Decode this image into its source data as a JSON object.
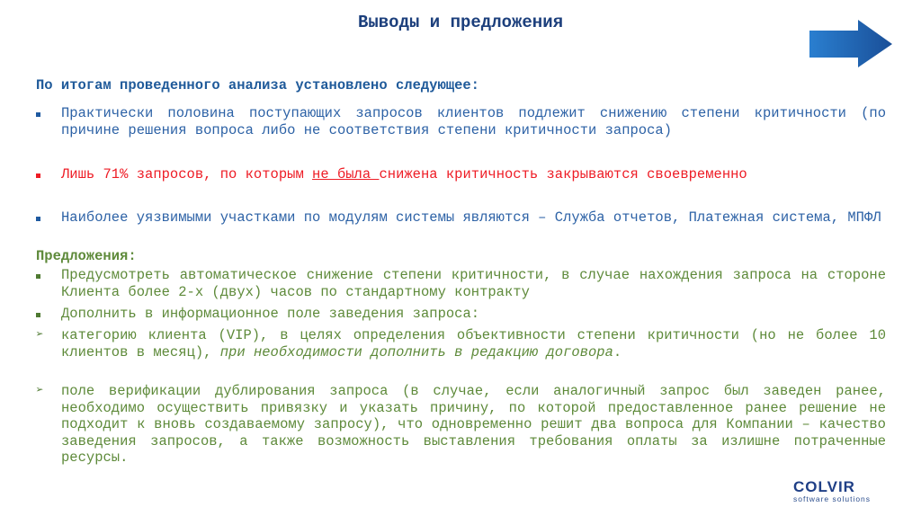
{
  "title": "Выводы и предложения",
  "next_icon": "arrow-right-icon",
  "lead": "По итогам проведенного анализа установлено следующее:",
  "findings": [
    {
      "text": "Практически половина поступающих запросов клиентов подлежит снижению степени критичности (по причине решения вопроса либо не соответствия степени критичности запроса)"
    },
    {
      "pre": "Лишь 71%  запросов, по которым ",
      "underlined": "не была ",
      "post": "снижена критичность закрываются своевременно"
    },
    {
      "text": "Наиболее уязвимыми участками по модулям системы являются – Служба отчетов, Платежная система, МПФЛ"
    }
  ],
  "proposals_heading": "Предложения:",
  "proposals": [
    {
      "text": "Предусмотреть автоматическое снижение степени критичности, в случае нахождения запроса на стороне Клиента более 2-х (двух) часов по стандартному контракту"
    },
    {
      "text": "Дополнить в информационное поле заведения запроса:"
    }
  ],
  "sub_proposals": [
    {
      "text": "категорию клиента (VIP), в целях определения объективности степени критичности (но не более 10 клиентов в месяц), ",
      "italic": "при необходимости дополнить в редакцию договора",
      "post": "."
    },
    {
      "text": "поле верификации дублирования запроса (в случае, если аналогичный запрос был заведен ранее, необходимо осуществить привязку и указать причину, по которой предоставленное ранее решение не подходит к вновь создаваемому запросу), что одновременно решит два вопроса для Компании – качество заведения запросов, а также возможность выставления требования оплаты за излишне потраченные ресурсы."
    }
  ],
  "logo": {
    "name": "COLVIR",
    "tagline": "software solutions"
  },
  "colors": {
    "title": "#1c3f7c",
    "blue": "#2d62a6",
    "red": "#ee1c25",
    "green": "#5e8a3a"
  }
}
